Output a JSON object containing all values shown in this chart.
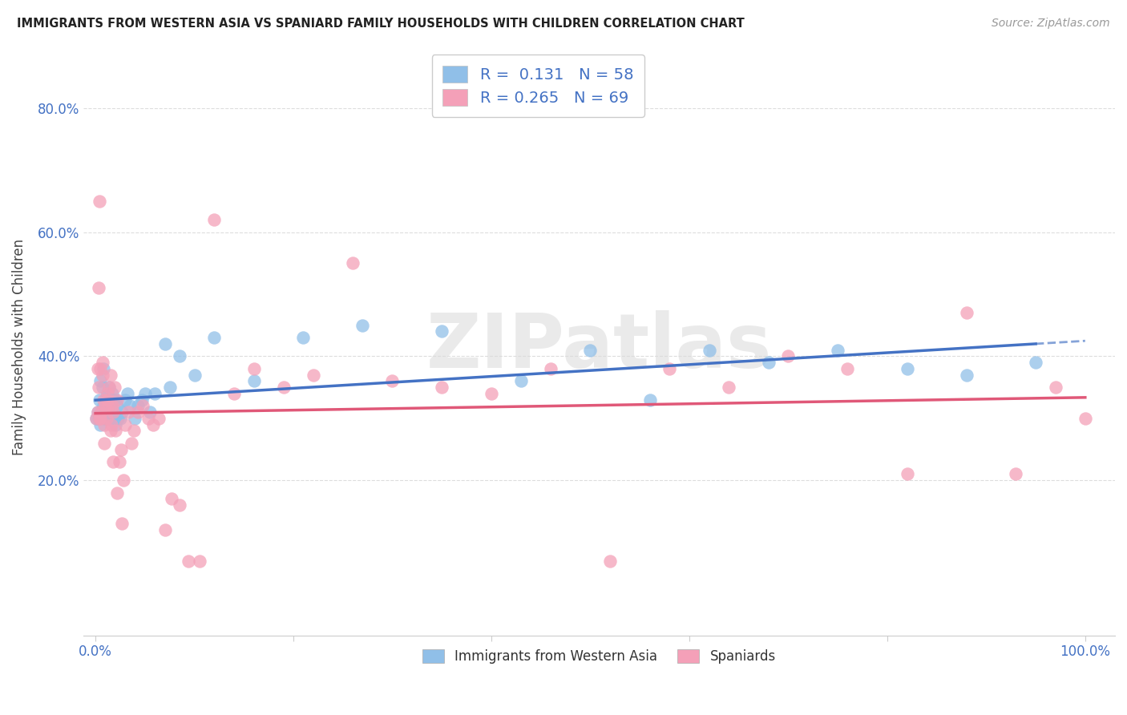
{
  "title": "IMMIGRANTS FROM WESTERN ASIA VS SPANIARD FAMILY HOUSEHOLDS WITH CHILDREN CORRELATION CHART",
  "source": "Source: ZipAtlas.com",
  "ylabel": "Family Households with Children",
  "R_blue": "0.131",
  "N_blue": "58",
  "R_pink": "0.265",
  "N_pink": "69",
  "color_blue": "#90BFE8",
  "color_pink": "#F4A0B8",
  "color_blue_line": "#4472C4",
  "color_pink_line": "#E05878",
  "color_text_blue": "#4472C4",
  "watermark_color": "#DADADA",
  "legend_label_blue": "Immigrants from Western Asia",
  "legend_label_pink": "Spaniards",
  "background": "#FFFFFF",
  "blue_x": [
    0.001,
    0.002,
    0.003,
    0.004,
    0.005,
    0.005,
    0.006,
    0.007,
    0.008,
    0.008,
    0.009,
    0.01,
    0.01,
    0.011,
    0.012,
    0.012,
    0.013,
    0.013,
    0.014,
    0.015,
    0.015,
    0.016,
    0.017,
    0.018,
    0.019,
    0.02,
    0.02,
    0.022,
    0.023,
    0.025,
    0.027,
    0.03,
    0.032,
    0.035,
    0.04,
    0.043,
    0.047,
    0.05,
    0.055,
    0.06,
    0.07,
    0.075,
    0.085,
    0.1,
    0.12,
    0.16,
    0.21,
    0.27,
    0.35,
    0.43,
    0.5,
    0.56,
    0.62,
    0.68,
    0.75,
    0.82,
    0.88,
    0.95
  ],
  "blue_y": [
    0.3,
    0.31,
    0.3,
    0.33,
    0.29,
    0.36,
    0.31,
    0.35,
    0.32,
    0.38,
    0.3,
    0.3,
    0.33,
    0.32,
    0.31,
    0.34,
    0.32,
    0.3,
    0.35,
    0.3,
    0.32,
    0.31,
    0.34,
    0.33,
    0.3,
    0.29,
    0.33,
    0.32,
    0.3,
    0.3,
    0.31,
    0.33,
    0.34,
    0.32,
    0.3,
    0.32,
    0.33,
    0.34,
    0.31,
    0.34,
    0.42,
    0.35,
    0.4,
    0.37,
    0.43,
    0.36,
    0.43,
    0.45,
    0.44,
    0.36,
    0.41,
    0.33,
    0.41,
    0.39,
    0.41,
    0.38,
    0.37,
    0.39
  ],
  "pink_x": [
    0.001,
    0.002,
    0.003,
    0.004,
    0.005,
    0.006,
    0.007,
    0.008,
    0.009,
    0.01,
    0.011,
    0.012,
    0.013,
    0.014,
    0.015,
    0.016,
    0.017,
    0.018,
    0.019,
    0.02,
    0.022,
    0.024,
    0.026,
    0.028,
    0.03,
    0.033,
    0.036,
    0.039,
    0.043,
    0.048,
    0.053,
    0.058,
    0.064,
    0.07,
    0.077,
    0.085,
    0.094,
    0.105,
    0.12,
    0.14,
    0.16,
    0.19,
    0.22,
    0.26,
    0.3,
    0.35,
    0.4,
    0.46,
    0.52,
    0.58,
    0.64,
    0.7,
    0.76,
    0.82,
    0.88,
    0.93,
    0.97,
    1.0,
    0.002,
    0.003,
    0.004,
    0.005,
    0.007,
    0.009,
    0.012,
    0.015,
    0.018,
    0.022,
    0.027
  ],
  "pink_y": [
    0.3,
    0.31,
    0.35,
    0.3,
    0.38,
    0.31,
    0.37,
    0.33,
    0.29,
    0.32,
    0.3,
    0.34,
    0.32,
    0.35,
    0.37,
    0.29,
    0.32,
    0.31,
    0.35,
    0.28,
    0.33,
    0.23,
    0.25,
    0.2,
    0.29,
    0.31,
    0.26,
    0.28,
    0.31,
    0.32,
    0.3,
    0.29,
    0.3,
    0.12,
    0.17,
    0.16,
    0.07,
    0.07,
    0.62,
    0.34,
    0.38,
    0.35,
    0.37,
    0.55,
    0.36,
    0.35,
    0.34,
    0.38,
    0.07,
    0.38,
    0.35,
    0.4,
    0.38,
    0.21,
    0.47,
    0.21,
    0.35,
    0.3,
    0.38,
    0.51,
    0.65,
    0.3,
    0.39,
    0.26,
    0.33,
    0.28,
    0.23,
    0.18,
    0.13
  ]
}
